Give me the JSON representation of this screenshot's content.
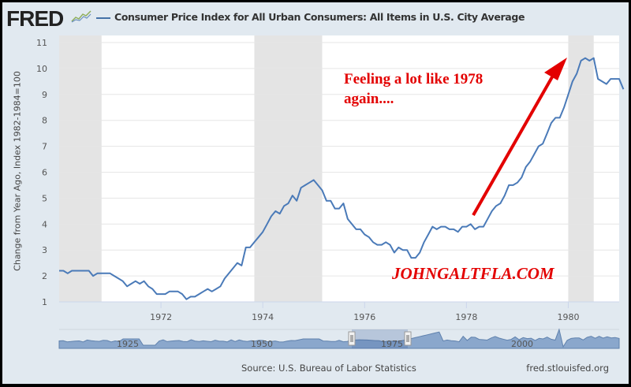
{
  "header": {
    "logo": "FRED",
    "logo_icon": "trend-line-icon",
    "title": "Consumer Price Index for All Urban Consumers: All Items in U.S. City Average"
  },
  "footer": {
    "source": "Source: U.S. Bureau of Labor Statistics",
    "site": "fred.stlouisfed.org"
  },
  "annotations": {
    "headline_line1": "Feeling a lot like 1978",
    "headline_line2": "again....",
    "watermark": "JOHNGALTFLA.COM",
    "annotation_color": "#e30000"
  },
  "navigator": {
    "tick_labels": [
      "1925",
      "1950",
      "1975",
      "2000"
    ],
    "handle_icon": "drag-handle-icon"
  },
  "colors": {
    "series": "#4a7ab8",
    "recession": "#e4e4e4",
    "navigator_fill": "#8aa7cc"
  },
  "chart_data": {
    "type": "line",
    "title": "Consumer Price Index for All Urban Consumers: All Items in U.S. City Average",
    "ylabel": "Change from Year Ago, Index 1982-1984=100",
    "xlabel": "",
    "ylim": [
      1,
      11
    ],
    "yticks": [
      1,
      2,
      3,
      4,
      5,
      6,
      7,
      8,
      9,
      10,
      11
    ],
    "xticks": [
      "1972",
      "1974",
      "1976",
      "1978",
      "1980"
    ],
    "xlim": [
      "1970-01",
      "1981-01"
    ],
    "grid": true,
    "recessions": [
      [
        "1970-01",
        "1970-11"
      ],
      [
        "1973-11",
        "1975-03"
      ],
      [
        "1980-01",
        "1980-07"
      ]
    ],
    "series": [
      {
        "name": "Consumer Price Index for All Urban Consumers: All Items in U.S. City Average",
        "start": "1970-01",
        "frequency": "monthly",
        "values": [
          2.2,
          2.2,
          2.1,
          2.2,
          2.2,
          2.2,
          2.2,
          2.2,
          2.0,
          2.1,
          2.1,
          2.1,
          2.1,
          2.0,
          1.9,
          1.8,
          1.6,
          1.7,
          1.8,
          1.7,
          1.8,
          1.6,
          1.5,
          1.3,
          1.3,
          1.3,
          1.4,
          1.4,
          1.4,
          1.3,
          1.1,
          1.2,
          1.2,
          1.3,
          1.4,
          1.5,
          1.4,
          1.5,
          1.6,
          1.9,
          2.1,
          2.3,
          2.5,
          2.4,
          3.1,
          3.1,
          3.3,
          3.5,
          3.7,
          4.0,
          4.3,
          4.5,
          4.4,
          4.7,
          4.8,
          5.1,
          4.9,
          5.4,
          5.5,
          5.6,
          5.7,
          5.5,
          5.3,
          4.9,
          4.9,
          4.6,
          4.6,
          4.8,
          4.2,
          4.0,
          3.8,
          3.8,
          3.6,
          3.5,
          3.3,
          3.2,
          3.2,
          3.3,
          3.2,
          2.9,
          3.1,
          3.0,
          3.0,
          2.7,
          2.7,
          2.9,
          3.3,
          3.6,
          3.9,
          3.8,
          3.9,
          3.9,
          3.8,
          3.8,
          3.7,
          3.9,
          3.9,
          4.0,
          3.8,
          3.9,
          3.9,
          4.2,
          4.5,
          4.7,
          4.8,
          5.1,
          5.5,
          5.5,
          5.6,
          5.8,
          6.2,
          6.4,
          6.7,
          7.0,
          7.1,
          7.5,
          7.9,
          8.1,
          8.1,
          8.5,
          9.0,
          9.5,
          9.8,
          10.3,
          10.4,
          10.3,
          10.4,
          9.6,
          9.5,
          9.4,
          9.6,
          9.6,
          9.6,
          9.2
        ]
      }
    ]
  }
}
